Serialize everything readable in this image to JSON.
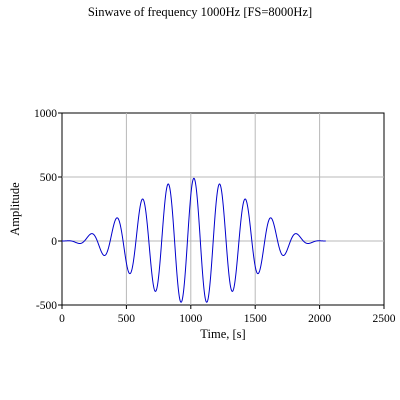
{
  "chart_data": {
    "type": "line",
    "title": "Sinwave of frequency 1000Hz [FS=8000Hz]",
    "xlabel": "Time, [s]",
    "ylabel": "Amplitude",
    "xlim": [
      0,
      2500
    ],
    "ylim": [
      -500,
      1000
    ],
    "xticks": [
      0,
      500,
      1000,
      1500,
      2000,
      2500
    ],
    "yticks": [
      -500,
      0,
      500,
      1000
    ],
    "grid": true,
    "line_color": "#0000cc",
    "series": [
      {
        "signal": {
          "x_start": 0,
          "x_end": 2048,
          "period": 200,
          "envelope_peak_x": 1024,
          "envelope_peak_amplitude": 490
        }
      }
    ]
  }
}
